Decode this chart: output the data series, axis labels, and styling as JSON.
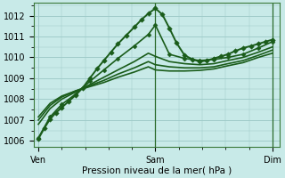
{
  "bg_color": "#c8eae8",
  "grid_color": "#a0ccca",
  "line_color": "#1a5c1a",
  "marker_color": "#1a5c1a",
  "xlabel": "Pression niveau de la mer( hPa )",
  "xtick_labels": [
    "Ven",
    "Sam",
    "Dim"
  ],
  "xtick_pos": [
    0.0,
    0.5,
    1.0
  ],
  "ylim": [
    1005.7,
    1012.6
  ],
  "yticks": [
    1006,
    1007,
    1008,
    1009,
    1010,
    1011,
    1012
  ],
  "series": [
    {
      "x": [
        0.0,
        0.025,
        0.05,
        0.075,
        0.1,
        0.13,
        0.16,
        0.19,
        0.22,
        0.25,
        0.28,
        0.31,
        0.34,
        0.375,
        0.41,
        0.44,
        0.47,
        0.5,
        0.53,
        0.56,
        0.59,
        0.625,
        0.66,
        0.69,
        0.72,
        0.75,
        0.78,
        0.81,
        0.84,
        0.875,
        0.91,
        0.94,
        0.97,
        1.0
      ],
      "y": [
        1006.1,
        1006.6,
        1007.05,
        1007.35,
        1007.6,
        1007.9,
        1008.2,
        1008.55,
        1009.0,
        1009.45,
        1009.85,
        1010.25,
        1010.65,
        1011.05,
        1011.45,
        1011.8,
        1012.1,
        1012.35,
        1012.05,
        1011.4,
        1010.7,
        1010.1,
        1009.9,
        1009.8,
        1009.85,
        1009.95,
        1010.05,
        1010.15,
        1010.3,
        1010.45,
        1010.55,
        1010.65,
        1010.75,
        1010.85
      ],
      "lw": 1.4,
      "marker": "D",
      "ms": 2.8
    },
    {
      "x": [
        0.0,
        0.05,
        0.1,
        0.16,
        0.22,
        0.28,
        0.34,
        0.41,
        0.47,
        0.5,
        0.56,
        0.625,
        0.69,
        0.75,
        0.81,
        0.875,
        0.94,
        1.0
      ],
      "y": [
        1006.15,
        1007.15,
        1007.75,
        1008.25,
        1008.85,
        1009.4,
        1009.95,
        1010.55,
        1011.1,
        1011.55,
        1010.15,
        1009.95,
        1009.85,
        1009.9,
        1010.0,
        1010.15,
        1010.45,
        1010.75
      ],
      "lw": 1.2,
      "marker": "D",
      "ms": 2.5
    },
    {
      "x": [
        0.0,
        0.05,
        0.1,
        0.16,
        0.22,
        0.28,
        0.34,
        0.41,
        0.47,
        0.5,
        0.56,
        0.625,
        0.69,
        0.75,
        0.81,
        0.875,
        0.94,
        1.0
      ],
      "y": [
        1006.8,
        1007.55,
        1008.0,
        1008.35,
        1008.7,
        1009.05,
        1009.4,
        1009.8,
        1010.2,
        1010.05,
        1009.8,
        1009.7,
        1009.65,
        1009.7,
        1009.85,
        1010.0,
        1010.25,
        1010.5
      ],
      "lw": 1.2,
      "marker": null,
      "ms": 0
    },
    {
      "x": [
        0.0,
        0.05,
        0.1,
        0.16,
        0.22,
        0.28,
        0.34,
        0.41,
        0.47,
        0.5,
        0.56,
        0.625,
        0.69,
        0.75,
        0.81,
        0.875,
        0.94,
        1.0
      ],
      "y": [
        1007.0,
        1007.7,
        1008.1,
        1008.4,
        1008.65,
        1008.9,
        1009.2,
        1009.5,
        1009.8,
        1009.65,
        1009.55,
        1009.5,
        1009.5,
        1009.55,
        1009.7,
        1009.85,
        1010.1,
        1010.35
      ],
      "lw": 1.2,
      "marker": null,
      "ms": 0
    },
    {
      "x": [
        0.0,
        0.05,
        0.1,
        0.16,
        0.22,
        0.28,
        0.34,
        0.41,
        0.47,
        0.5,
        0.56,
        0.625,
        0.69,
        0.75,
        0.81,
        0.875,
        0.94,
        1.0
      ],
      "y": [
        1007.15,
        1007.8,
        1008.15,
        1008.4,
        1008.6,
        1008.8,
        1009.05,
        1009.3,
        1009.55,
        1009.4,
        1009.35,
        1009.35,
        1009.38,
        1009.45,
        1009.6,
        1009.75,
        1010.0,
        1010.2
      ],
      "lw": 1.2,
      "marker": null,
      "ms": 0
    }
  ],
  "vline_x": [
    0.5,
    1.0
  ],
  "vline_color": "#2a6a2a",
  "tick_fontsize": 7,
  "xlabel_fontsize": 7.5
}
